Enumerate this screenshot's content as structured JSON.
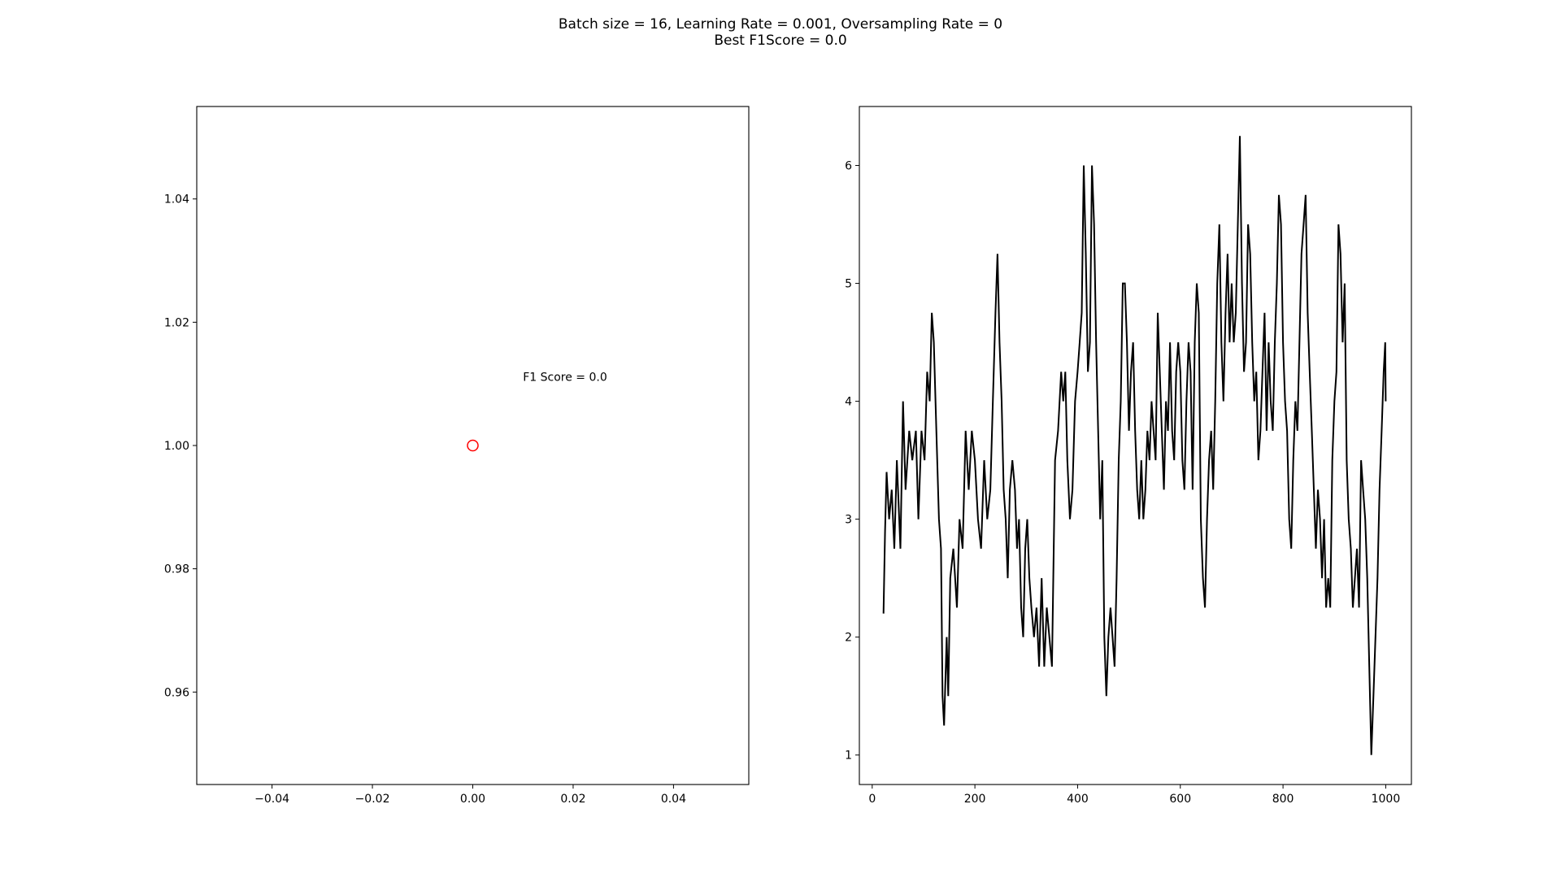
{
  "figure": {
    "title_line1": "Batch size = 16, Learning Rate = 0.001, Oversampling Rate = 0",
    "title_line2": "Best F1Score = 0.0"
  },
  "chart_data": [
    {
      "type": "scatter",
      "title": "",
      "xlabel": "",
      "ylabel": "",
      "xlim": [
        -0.055,
        0.055
      ],
      "ylim": [
        0.945,
        1.055
      ],
      "xticks": [
        -0.04,
        -0.02,
        0.0,
        0.02,
        0.04
      ],
      "xtick_labels": [
        "−0.04",
        "−0.02",
        "0.00",
        "0.02",
        "0.04"
      ],
      "yticks": [
        0.96,
        0.98,
        1.0,
        1.02,
        1.04
      ],
      "ytick_labels": [
        "0.96",
        "0.98",
        "1.00",
        "1.02",
        "1.04"
      ],
      "grid": false,
      "points": [
        {
          "x": 0.0,
          "y": 1.0
        }
      ],
      "marker": "hollow-circle",
      "color": "#ff0000",
      "annotations": [
        {
          "text": "F1 Score = 0.0",
          "x": 0.01,
          "y": 1.0105
        }
      ]
    },
    {
      "type": "line",
      "title": "",
      "xlabel": "",
      "ylabel": "",
      "xlim": [
        -25,
        1050
      ],
      "ylim": [
        0.75,
        6.5
      ],
      "xticks": [
        0,
        200,
        400,
        600,
        800,
        1000
      ],
      "xtick_labels": [
        "0",
        "200",
        "400",
        "600",
        "800",
        "1000"
      ],
      "yticks": [
        1,
        2,
        3,
        4,
        5,
        6
      ],
      "ytick_labels": [
        "1",
        "2",
        "3",
        "4",
        "5",
        "6"
      ],
      "grid": false,
      "color": "#000000",
      "series": [
        {
          "points": [
            [
              22,
              2.2
            ],
            [
              25,
              2.9
            ],
            [
              28,
              3.4
            ],
            [
              33,
              3.0
            ],
            [
              38,
              3.25
            ],
            [
              43,
              2.75
            ],
            [
              48,
              3.5
            ],
            [
              55,
              2.75
            ],
            [
              60,
              4.0
            ],
            [
              65,
              3.25
            ],
            [
              72,
              3.75
            ],
            [
              78,
              3.5
            ],
            [
              85,
              3.75
            ],
            [
              90,
              3.0
            ],
            [
              96,
              3.75
            ],
            [
              102,
              3.5
            ],
            [
              107,
              4.25
            ],
            [
              112,
              4.0
            ],
            [
              116,
              4.75
            ],
            [
              120,
              4.5
            ],
            [
              125,
              3.75
            ],
            [
              130,
              3.0
            ],
            [
              134,
              2.75
            ],
            [
              137,
              1.5
            ],
            [
              140,
              1.25
            ],
            [
              145,
              2.0
            ],
            [
              148,
              1.5
            ],
            [
              152,
              2.5
            ],
            [
              158,
              2.75
            ],
            [
              165,
              2.25
            ],
            [
              170,
              3.0
            ],
            [
              176,
              2.75
            ],
            [
              182,
              3.75
            ],
            [
              188,
              3.25
            ],
            [
              194,
              3.75
            ],
            [
              200,
              3.5
            ],
            [
              206,
              3.0
            ],
            [
              212,
              2.75
            ],
            [
              218,
              3.5
            ],
            [
              224,
              3.0
            ],
            [
              230,
              3.25
            ],
            [
              235,
              4.0
            ],
            [
              240,
              4.75
            ],
            [
              244,
              5.25
            ],
            [
              248,
              4.5
            ],
            [
              252,
              4.0
            ],
            [
              256,
              3.25
            ],
            [
              260,
              3.0
            ],
            [
              264,
              2.5
            ],
            [
              268,
              3.25
            ],
            [
              273,
              3.5
            ],
            [
              278,
              3.25
            ],
            [
              282,
              2.75
            ],
            [
              286,
              3.0
            ],
            [
              290,
              2.25
            ],
            [
              294,
              2.0
            ],
            [
              298,
              2.75
            ],
            [
              302,
              3.0
            ],
            [
              306,
              2.5
            ],
            [
              310,
              2.25
            ],
            [
              315,
              2.0
            ],
            [
              320,
              2.25
            ],
            [
              325,
              1.75
            ],
            [
              330,
              2.5
            ],
            [
              335,
              1.75
            ],
            [
              340,
              2.25
            ],
            [
              345,
              2.0
            ],
            [
              350,
              1.75
            ],
            [
              356,
              3.5
            ],
            [
              362,
              3.75
            ],
            [
              368,
              4.25
            ],
            [
              372,
              4.0
            ],
            [
              376,
              4.25
            ],
            [
              380,
              3.5
            ],
            [
              385,
              3.0
            ],
            [
              390,
              3.25
            ],
            [
              395,
              4.0
            ],
            [
              400,
              4.25
            ],
            [
              404,
              4.5
            ],
            [
              408,
              4.75
            ],
            [
              412,
              6.0
            ],
            [
              416,
              5.25
            ],
            [
              420,
              4.25
            ],
            [
              424,
              4.5
            ],
            [
              428,
              6.0
            ],
            [
              432,
              5.5
            ],
            [
              436,
              4.5
            ],
            [
              440,
              3.75
            ],
            [
              444,
              3.0
            ],
            [
              448,
              3.5
            ],
            [
              452,
              2.0
            ],
            [
              456,
              1.5
            ],
            [
              460,
              2.0
            ],
            [
              464,
              2.25
            ],
            [
              468,
              2.0
            ],
            [
              472,
              1.75
            ],
            [
              476,
              2.5
            ],
            [
              480,
              3.5
            ],
            [
              484,
              4.0
            ],
            [
              488,
              5.0
            ],
            [
              492,
              5.0
            ],
            [
              496,
              4.5
            ],
            [
              500,
              3.75
            ],
            [
              504,
              4.25
            ],
            [
              508,
              4.5
            ],
            [
              512,
              3.75
            ],
            [
              516,
              3.25
            ],
            [
              520,
              3.0
            ],
            [
              524,
              3.5
            ],
            [
              528,
              3.0
            ],
            [
              532,
              3.25
            ],
            [
              536,
              3.75
            ],
            [
              540,
              3.5
            ],
            [
              544,
              4.0
            ],
            [
              548,
              3.75
            ],
            [
              552,
              3.5
            ],
            [
              556,
              4.75
            ],
            [
              560,
              4.25
            ],
            [
              564,
              3.75
            ],
            [
              568,
              3.25
            ],
            [
              572,
              4.0
            ],
            [
              576,
              3.75
            ],
            [
              580,
              4.5
            ],
            [
              584,
              3.75
            ],
            [
              588,
              3.5
            ],
            [
              592,
              4.25
            ],
            [
              596,
              4.5
            ],
            [
              600,
              4.25
            ],
            [
              604,
              3.5
            ],
            [
              608,
              3.25
            ],
            [
              612,
              4.0
            ],
            [
              616,
              4.5
            ],
            [
              620,
              4.25
            ],
            [
              624,
              3.25
            ],
            [
              628,
              4.5
            ],
            [
              632,
              5.0
            ],
            [
              636,
              4.75
            ],
            [
              640,
              3.0
            ],
            [
              644,
              2.5
            ],
            [
              648,
              2.25
            ],
            [
              652,
              3.0
            ],
            [
              656,
              3.5
            ],
            [
              660,
              3.75
            ],
            [
              664,
              3.25
            ],
            [
              668,
              4.0
            ],
            [
              672,
              5.0
            ],
            [
              676,
              5.5
            ],
            [
              680,
              4.5
            ],
            [
              684,
              4.0
            ],
            [
              688,
              4.75
            ],
            [
              692,
              5.25
            ],
            [
              696,
              4.5
            ],
            [
              700,
              5.0
            ],
            [
              704,
              4.5
            ],
            [
              708,
              4.75
            ],
            [
              712,
              5.5
            ],
            [
              716,
              6.25
            ],
            [
              720,
              5.0
            ],
            [
              724,
              4.25
            ],
            [
              728,
              4.5
            ],
            [
              732,
              5.5
            ],
            [
              736,
              5.25
            ],
            [
              740,
              4.5
            ],
            [
              744,
              4.0
            ],
            [
              748,
              4.25
            ],
            [
              752,
              3.5
            ],
            [
              756,
              3.75
            ],
            [
              760,
              4.25
            ],
            [
              764,
              4.75
            ],
            [
              768,
              3.75
            ],
            [
              772,
              4.5
            ],
            [
              776,
              4.0
            ],
            [
              780,
              3.75
            ],
            [
              784,
              4.5
            ],
            [
              788,
              5.0
            ],
            [
              792,
              5.75
            ],
            [
              796,
              5.5
            ],
            [
              800,
              4.5
            ],
            [
              804,
              4.0
            ],
            [
              808,
              3.75
            ],
            [
              812,
              3.0
            ],
            [
              816,
              2.75
            ],
            [
              820,
              3.5
            ],
            [
              824,
              4.0
            ],
            [
              828,
              3.75
            ],
            [
              832,
              4.5
            ],
            [
              836,
              5.25
            ],
            [
              840,
              5.5
            ],
            [
              844,
              5.75
            ],
            [
              848,
              4.75
            ],
            [
              852,
              4.25
            ],
            [
              856,
              3.75
            ],
            [
              860,
              3.25
            ],
            [
              864,
              2.75
            ],
            [
              868,
              3.25
            ],
            [
              872,
              3.0
            ],
            [
              876,
              2.5
            ],
            [
              880,
              3.0
            ],
            [
              884,
              2.25
            ],
            [
              888,
              2.5
            ],
            [
              892,
              2.25
            ],
            [
              896,
              3.5
            ],
            [
              900,
              4.0
            ],
            [
              904,
              4.25
            ],
            [
              908,
              5.5
            ],
            [
              912,
              5.25
            ],
            [
              916,
              4.5
            ],
            [
              920,
              5.0
            ],
            [
              924,
              3.5
            ],
            [
              928,
              3.0
            ],
            [
              932,
              2.75
            ],
            [
              936,
              2.25
            ],
            [
              940,
              2.5
            ],
            [
              944,
              2.75
            ],
            [
              948,
              2.25
            ],
            [
              952,
              3.5
            ],
            [
              956,
              3.25
            ],
            [
              960,
              3.0
            ],
            [
              964,
              2.5
            ],
            [
              968,
              1.75
            ],
            [
              972,
              1.0
            ],
            [
              976,
              1.5
            ],
            [
              980,
              2.0
            ],
            [
              984,
              2.5
            ],
            [
              988,
              3.25
            ],
            [
              992,
              3.75
            ],
            [
              996,
              4.25
            ],
            [
              999,
              4.5
            ],
            [
              1000,
              4.0
            ]
          ]
        }
      ]
    }
  ]
}
